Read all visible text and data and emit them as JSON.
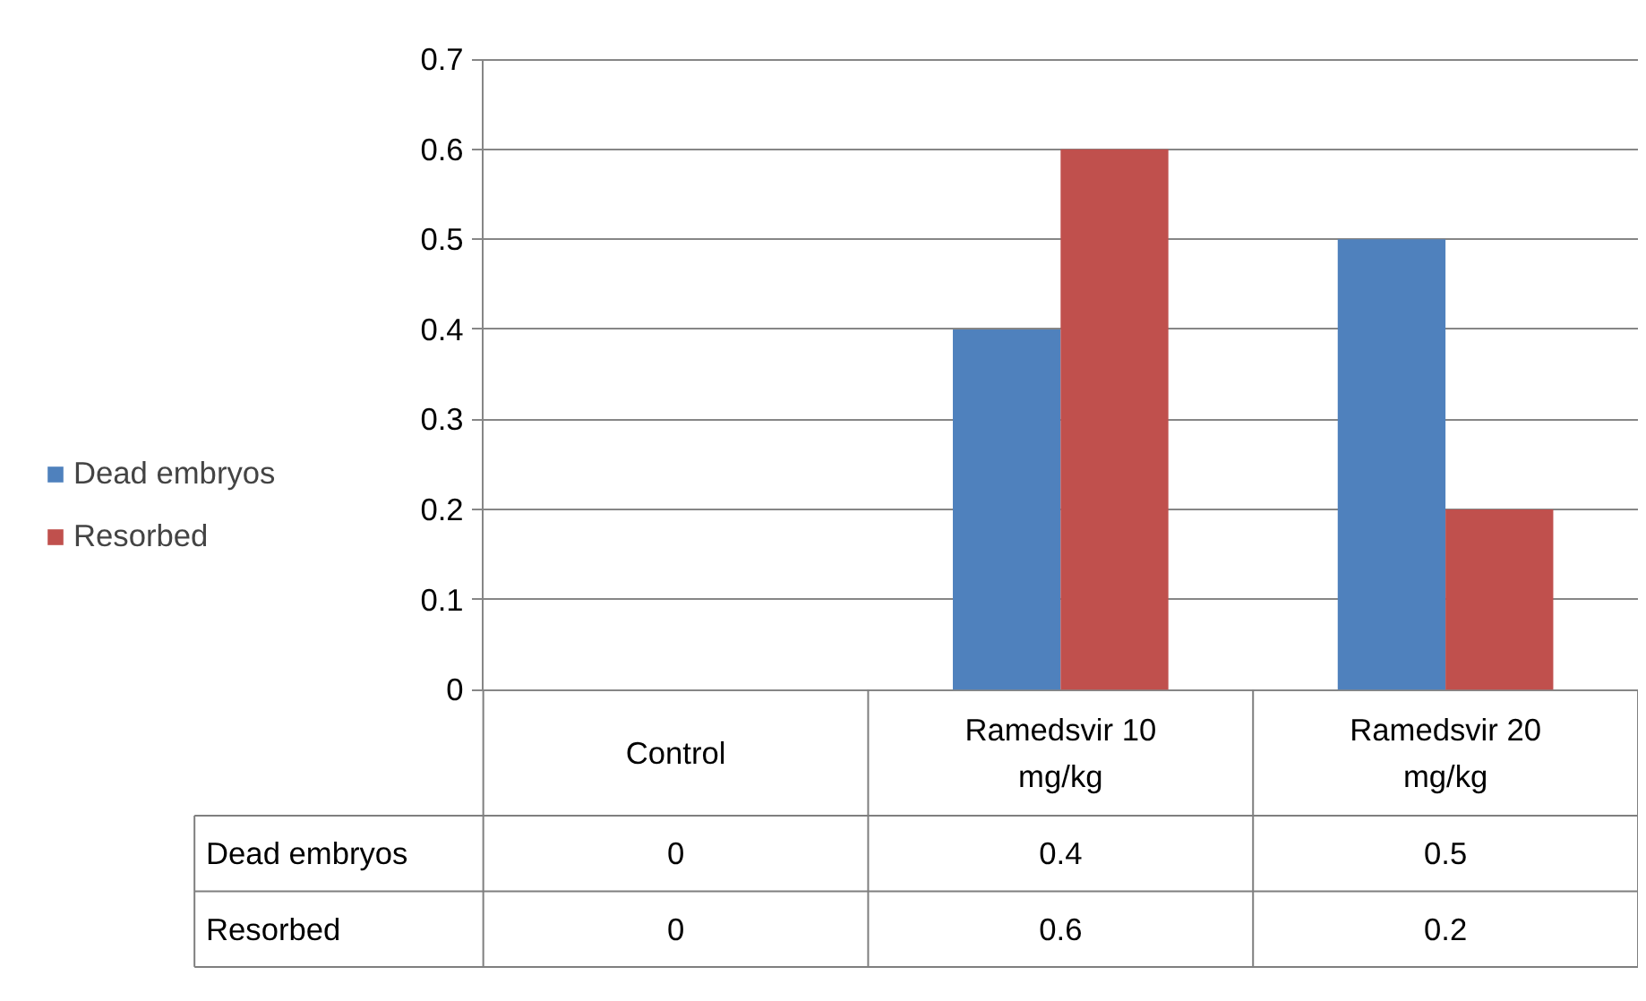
{
  "chart_data": {
    "type": "bar",
    "categories": [
      "Control",
      "Ramedsvir 10 mg/kg",
      "Ramedsvir 20 mg/kg"
    ],
    "series": [
      {
        "name": "Dead embryos",
        "color": "#4f81bd",
        "values": [
          0,
          0.4,
          0.5
        ]
      },
      {
        "name": "Resorbed",
        "color": "#c0504d",
        "values": [
          0,
          0.6,
          0.2
        ]
      }
    ],
    "ylim": [
      0,
      0.7
    ],
    "yticks": [
      0,
      0.1,
      0.2,
      0.3,
      0.4,
      0.5,
      0.6,
      0.7
    ],
    "grid": "y",
    "legend": "left",
    "data_labels": true
  }
}
